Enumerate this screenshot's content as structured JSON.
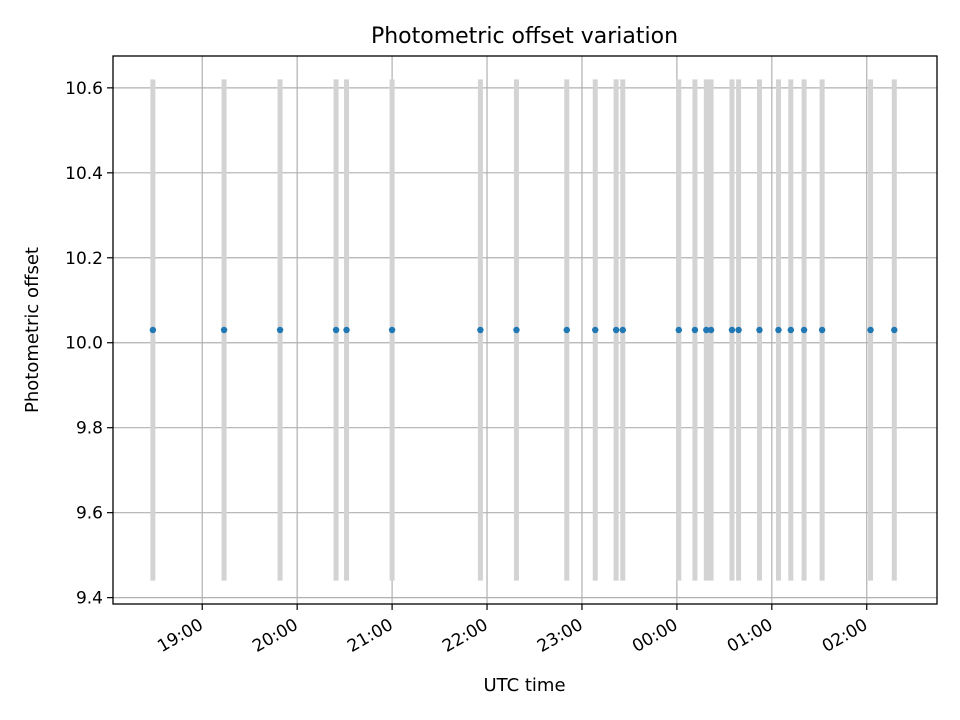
{
  "chart_data": {
    "type": "scatter",
    "title": "Photometric offset variation",
    "xlabel": "UTC time",
    "ylabel": "Photometric offset",
    "x_tick_labels": [
      "19:00",
      "20:00",
      "21:00",
      "22:00",
      "23:00",
      "00:00",
      "01:00",
      "02:00"
    ],
    "x_ticks_hours": [
      19,
      20,
      21,
      22,
      23,
      24,
      25,
      26
    ],
    "y_ticks": [
      9.4,
      9.6,
      9.8,
      10.0,
      10.2,
      10.4,
      10.6
    ],
    "y_tick_labels": [
      "9.4",
      "9.6",
      "9.8",
      "10.0",
      "10.2",
      "10.4",
      "10.6"
    ],
    "xlim_hours": [
      18.06,
      26.74
    ],
    "ylim": [
      9.385,
      10.675
    ],
    "grid": true,
    "series": [
      {
        "marker_color": "#1f77b4",
        "errorbar_color": "#d3d3d3",
        "x_hours": [
          18.48,
          19.23,
          19.82,
          20.41,
          20.52,
          21.0,
          21.93,
          22.31,
          22.84,
          23.14,
          23.36,
          23.43,
          24.02,
          24.19,
          24.31,
          24.36,
          24.58,
          24.65,
          24.87,
          25.07,
          25.2,
          25.34,
          25.53,
          26.04,
          26.29
        ],
        "y": [
          10.03,
          10.03,
          10.03,
          10.03,
          10.03,
          10.03,
          10.03,
          10.03,
          10.03,
          10.03,
          10.03,
          10.03,
          10.03,
          10.03,
          10.03,
          10.03,
          10.03,
          10.03,
          10.03,
          10.03,
          10.03,
          10.03,
          10.03,
          10.03,
          10.03
        ],
        "y_err": 0.59
      }
    ]
  }
}
